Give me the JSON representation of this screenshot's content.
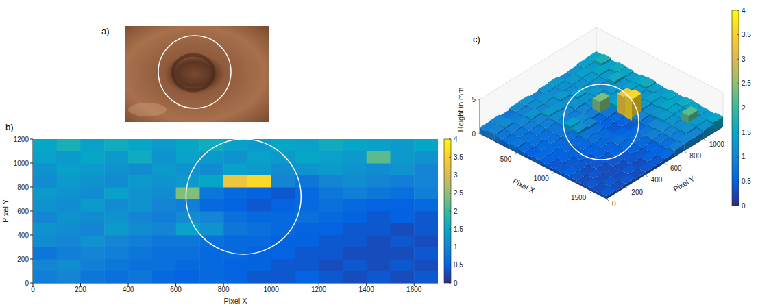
{
  "chart_data": [
    {
      "type": "image",
      "label": "a)"
    },
    {
      "type": "heatmap",
      "label": "b)",
      "xlabel": "Pixel X",
      "ylabel": "Pixel Y",
      "xlim": [
        0,
        1700
      ],
      "ylim": [
        0,
        1200
      ],
      "xticks": [
        0,
        200,
        400,
        600,
        800,
        1000,
        1200,
        1400,
        1600
      ],
      "yticks": [
        0,
        200,
        400,
        600,
        800,
        1000,
        1200
      ],
      "cell_x": [
        0,
        100,
        200,
        300,
        400,
        500,
        600,
        700,
        800,
        900,
        1000,
        1100,
        1200,
        1300,
        1400,
        1500,
        1600,
        1700
      ],
      "cell_y": [
        0,
        100,
        200,
        300,
        400,
        500,
        600,
        700,
        800,
        900,
        1000,
        1100,
        1200
      ],
      "cells": [
        [
          0.9,
          1.0,
          0.8,
          0.7,
          0.8,
          0.6,
          0.5,
          0.6,
          0.5,
          0.4,
          0.4,
          0.5,
          0.4,
          0.3,
          0.4,
          0.3,
          0.4
        ],
        [
          1.0,
          1.1,
          0.9,
          0.8,
          0.7,
          0.7,
          0.6,
          0.6,
          0.5,
          0.5,
          0.4,
          0.4,
          0.3,
          0.4,
          0.3,
          0.4,
          0.3
        ],
        [
          0.8,
          0.9,
          1.0,
          0.9,
          0.8,
          0.7,
          0.7,
          0.6,
          0.6,
          0.5,
          0.5,
          0.4,
          0.4,
          0.3,
          0.3,
          0.3,
          0.4
        ],
        [
          1.1,
          1.0,
          1.2,
          1.0,
          0.9,
          0.8,
          0.8,
          0.7,
          0.6,
          0.6,
          0.5,
          0.5,
          0.4,
          0.4,
          0.3,
          0.4,
          0.3
        ],
        [
          1.2,
          1.1,
          1.0,
          1.3,
          1.1,
          1.0,
          1.4,
          1.2,
          0.8,
          0.7,
          0.6,
          0.5,
          0.5,
          0.4,
          0.4,
          0.3,
          0.4
        ],
        [
          1.0,
          1.2,
          1.1,
          1.2,
          1.0,
          0.9,
          1.1,
          1.0,
          0.7,
          0.6,
          0.6,
          0.7,
          0.6,
          0.5,
          0.4,
          0.5,
          0.4
        ],
        [
          1.2,
          1.1,
          1.3,
          1.1,
          1.2,
          1.0,
          0.9,
          0.6,
          0.5,
          0.4,
          0.5,
          0.6,
          0.7,
          0.6,
          0.5,
          0.5,
          0.6
        ],
        [
          1.3,
          1.2,
          1.1,
          1.4,
          1.2,
          1.1,
          2.4,
          0.8,
          0.6,
          0.5,
          0.4,
          0.6,
          0.8,
          0.9,
          0.8,
          0.7,
          0.9
        ],
        [
          1.1,
          1.3,
          1.2,
          1.1,
          1.3,
          1.2,
          1.3,
          1.5,
          3.3,
          3.6,
          1.0,
          0.8,
          1.0,
          1.1,
          1.0,
          0.9,
          1.0
        ],
        [
          1.2,
          1.4,
          1.3,
          1.2,
          1.1,
          1.3,
          1.2,
          1.1,
          1.4,
          1.3,
          1.1,
          1.2,
          1.3,
          1.2,
          1.1,
          1.2,
          1.0
        ],
        [
          1.4,
          1.3,
          1.5,
          1.3,
          1.6,
          1.2,
          1.4,
          1.3,
          1.2,
          1.4,
          1.3,
          1.5,
          1.4,
          1.3,
          2.2,
          1.3,
          1.2
        ],
        [
          1.5,
          1.7,
          1.4,
          1.6,
          1.5,
          1.3,
          1.5,
          1.6,
          1.4,
          1.3,
          1.5,
          1.4,
          1.6,
          1.5,
          1.4,
          1.3,
          1.5
        ]
      ],
      "colorbar": {
        "range": [
          0,
          4
        ],
        "ticks": [
          0,
          0.5,
          1,
          1.5,
          2,
          2.5,
          3,
          3.5,
          4
        ]
      }
    },
    {
      "type": "surface3d",
      "label": "c)",
      "xlabel": "Pixel X",
      "ylabel": "Pixel Y",
      "zlabel": "Height in mm",
      "xlim": [
        0,
        1700
      ],
      "ylim": [
        0,
        1200
      ],
      "zlim": [
        0,
        5
      ],
      "xticks": [
        500,
        1000,
        1500
      ],
      "yticks": [
        0,
        200,
        400,
        600,
        800,
        1000
      ],
      "zticks": [
        0,
        5
      ],
      "cell_x": [
        0,
        100,
        200,
        300,
        400,
        500,
        600,
        700,
        800,
        900,
        1000,
        1100,
        1200,
        1300,
        1400,
        1500,
        1600,
        1700
      ],
      "cell_y": [
        0,
        100,
        200,
        300,
        400,
        500,
        600,
        700,
        800,
        900,
        1000,
        1100,
        1200
      ],
      "cells": [
        [
          0.9,
          1.0,
          0.8,
          0.7,
          0.8,
          0.6,
          0.5,
          0.6,
          0.5,
          0.4,
          0.4,
          0.5,
          0.4,
          0.3,
          0.4,
          0.3,
          0.4
        ],
        [
          1.0,
          1.1,
          0.9,
          0.8,
          0.7,
          0.7,
          0.6,
          0.6,
          0.5,
          0.5,
          0.4,
          0.4,
          0.3,
          0.4,
          0.3,
          0.4,
          0.3
        ],
        [
          0.8,
          0.9,
          1.0,
          0.9,
          0.8,
          0.7,
          0.7,
          0.6,
          0.6,
          0.5,
          0.5,
          0.4,
          0.4,
          0.3,
          0.3,
          0.3,
          0.4
        ],
        [
          1.1,
          1.0,
          1.2,
          1.0,
          0.9,
          0.8,
          0.8,
          0.7,
          0.6,
          0.6,
          0.5,
          0.5,
          0.4,
          0.4,
          0.3,
          0.4,
          0.3
        ],
        [
          1.2,
          1.1,
          1.0,
          1.3,
          1.1,
          1.0,
          1.4,
          1.2,
          0.8,
          0.7,
          0.6,
          0.5,
          0.5,
          0.4,
          0.4,
          0.3,
          0.4
        ],
        [
          1.0,
          1.2,
          1.1,
          1.2,
          1.0,
          0.9,
          1.1,
          1.0,
          0.7,
          0.6,
          0.6,
          0.7,
          0.6,
          0.5,
          0.4,
          0.5,
          0.4
        ],
        [
          1.2,
          1.1,
          1.3,
          1.1,
          1.2,
          1.0,
          0.9,
          0.6,
          0.5,
          0.4,
          0.5,
          0.6,
          0.7,
          0.6,
          0.5,
          0.5,
          0.6
        ],
        [
          1.3,
          1.2,
          1.1,
          1.4,
          1.2,
          1.1,
          2.4,
          0.8,
          0.6,
          0.5,
          0.4,
          0.6,
          0.8,
          0.9,
          0.8,
          0.7,
          0.9
        ],
        [
          1.1,
          1.3,
          1.2,
          1.1,
          1.3,
          1.2,
          1.3,
          1.5,
          3.3,
          3.6,
          1.0,
          0.8,
          1.0,
          1.1,
          1.0,
          0.9,
          1.0
        ],
        [
          1.2,
          1.4,
          1.3,
          1.2,
          1.1,
          1.3,
          1.2,
          1.1,
          1.4,
          1.3,
          1.1,
          1.2,
          1.3,
          1.2,
          1.1,
          1.2,
          1.0
        ],
        [
          1.4,
          1.3,
          1.5,
          1.3,
          1.6,
          1.2,
          1.4,
          1.3,
          1.2,
          1.4,
          1.3,
          1.5,
          1.4,
          1.3,
          2.2,
          1.3,
          1.2
        ],
        [
          1.5,
          1.7,
          1.4,
          1.6,
          1.5,
          1.3,
          1.5,
          1.6,
          1.4,
          1.3,
          1.5,
          1.4,
          1.6,
          1.5,
          1.4,
          1.3,
          1.5
        ]
      ],
      "colorbar": {
        "range": [
          0,
          4
        ],
        "ticks": [
          0,
          0.5,
          1,
          1.5,
          2,
          2.5,
          3,
          3.5,
          4
        ]
      }
    }
  ]
}
